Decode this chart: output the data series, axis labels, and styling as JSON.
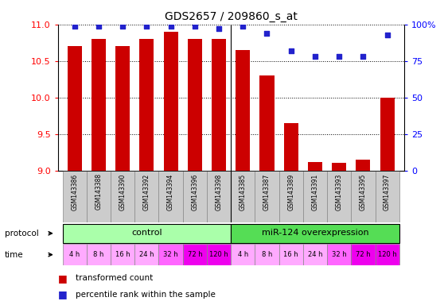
{
  "title": "GDS2657 / 209860_s_at",
  "samples": [
    "GSM143386",
    "GSM143388",
    "GSM143390",
    "GSM143392",
    "GSM143394",
    "GSM143396",
    "GSM143398",
    "GSM143385",
    "GSM143387",
    "GSM143389",
    "GSM143391",
    "GSM143393",
    "GSM143395",
    "GSM143397"
  ],
  "transformed_count": [
    10.7,
    10.8,
    10.7,
    10.8,
    10.9,
    10.8,
    10.8,
    10.65,
    10.3,
    9.65,
    9.12,
    9.11,
    9.15,
    10.0
  ],
  "percentile_rank": [
    99,
    99,
    99,
    99,
    99,
    99,
    97,
    99,
    94,
    82,
    78,
    78,
    78,
    93
  ],
  "ymin": 9.0,
  "ymax": 11.0,
  "yticks": [
    9.0,
    9.5,
    10.0,
    10.5,
    11.0
  ],
  "y2ticks": [
    0,
    25,
    50,
    75,
    100
  ],
  "bar_color": "#cc0000",
  "dot_color": "#2222cc",
  "protocol_control_color": "#aaffaa",
  "protocol_mir_color": "#55dd55",
  "time_colors_early": "#ffaaff",
  "time_colors_mid": "#ff66ff",
  "time_colors_late": "#ee00ee",
  "label_color_proto": "#aaffaa",
  "label_color_time": "#ffaaff",
  "protocol_labels": [
    "control",
    "miR-124 overexpression"
  ],
  "time_labels": [
    "4 h",
    "8 h",
    "16 h",
    "24 h",
    "32 h",
    "72 h",
    "120 h",
    "4 h",
    "8 h",
    "16 h",
    "24 h",
    "32 h",
    "72 h",
    "120 h"
  ],
  "n_control": 7,
  "n_mir": 7,
  "legend_red": "transformed count",
  "legend_blue": "percentile rank within the sample",
  "bar_width": 0.6,
  "sample_box_color": "#cccccc",
  "grid_color": "black",
  "separator_color": "black",
  "bg_color": "white"
}
